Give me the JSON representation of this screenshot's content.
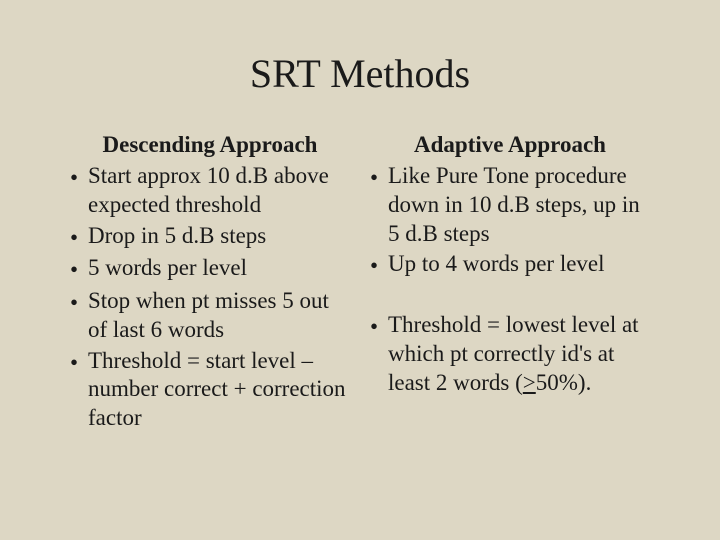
{
  "title": "SRT Methods",
  "bullet_char": "•",
  "left": {
    "subtitle": "Descending Approach",
    "items": [
      "Start approx 10 d.B above expected threshold",
      "Drop in 5 d.B steps",
      "5 words per level",
      "Stop when pt misses 5 out of last 6 words",
      "Threshold = start level – number correct + correction factor"
    ]
  },
  "right": {
    "subtitle": "Adaptive Approach",
    "items_a": [
      "Like Pure Tone procedure down in 10 d.B steps, up in 5 d.B steps",
      "Up to 4 words per level"
    ],
    "item_threshold_prefix": "Threshold = lowest level at which pt correctly id's at least 2 words (",
    "item_threshold_underlined": ">",
    "item_threshold_suffix": "50%)."
  },
  "colors": {
    "background": "#ddd7c4",
    "text": "#1a1a1a"
  },
  "fontsizes": {
    "title": 40,
    "subtitle": 23,
    "body": 23
  }
}
